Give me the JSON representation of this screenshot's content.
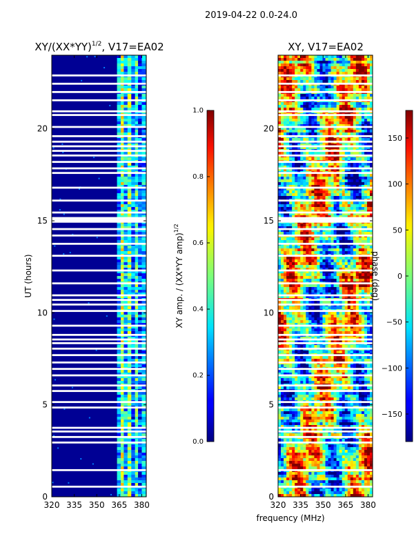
{
  "figure": {
    "suptitle": "2019-04-22 0.0-24.0",
    "shared_xlabel": "frequency (MHz)"
  },
  "chart_data": [
    {
      "type": "heatmap",
      "title": "XY/(XX*YY)",
      "title_sup": "1/2",
      "title_suffix": ", V17=EA02",
      "xlabel": "",
      "ylabel": "UT (hours)",
      "xlim": [
        320,
        383
      ],
      "ylim": [
        0,
        24
      ],
      "xticks": [
        320,
        335,
        350,
        365,
        380
      ],
      "yticks": [
        0,
        5,
        10,
        15,
        20
      ],
      "quantity": "normalized XY amplitude",
      "background_value": 0.02,
      "band": {
        "columns": [
          {
            "x0": 363.5,
            "x1": 366.0,
            "value": 0.28
          },
          {
            "x0": 366.0,
            "x1": 368.0,
            "value": 0.55
          },
          {
            "x0": 368.0,
            "x1": 370.5,
            "value": 0.32
          },
          {
            "x0": 370.5,
            "x1": 373.0,
            "value": 0.48
          },
          {
            "x0": 373.0,
            "x1": 375.5,
            "value": 0.22
          },
          {
            "x0": 375.5,
            "x1": 377.5,
            "value": 0.42
          },
          {
            "x0": 377.5,
            "x1": 380.0,
            "value": 0.18
          },
          {
            "x0": 380.0,
            "x1": 382.5,
            "value": 0.3
          }
        ]
      },
      "flagged_gaps_hours": [
        0.55,
        1.45,
        2.95,
        3.25,
        3.55,
        3.75,
        4.85,
        5.15,
        5.75,
        6.05,
        6.6,
        6.95,
        7.3,
        7.7,
        8.05,
        8.35,
        8.55,
        8.8,
        9.3,
        10.1,
        10.45,
        10.7,
        10.95,
        11.6,
        12.3,
        13.1,
        13.75,
        14.2,
        14.55,
        14.95,
        15.05,
        15.15,
        15.45,
        16.1,
        16.8,
        17.6,
        17.85,
        18.2,
        18.55,
        18.8,
        19.05,
        19.3,
        19.6,
        20.1,
        20.75,
        20.95,
        21.55,
        22.0,
        22.45,
        22.9
      ],
      "colorbar": {
        "label": "XY amp. / (XX*YY amp)",
        "label_sup": "1/2",
        "range": [
          0.0,
          1.0
        ],
        "ticks": [
          "0.0",
          "0.2",
          "0.4",
          "0.6",
          "0.8",
          "1.0"
        ]
      }
    },
    {
      "type": "heatmap",
      "title": "XY, V17=EA02",
      "xlabel": "frequency (MHz)",
      "ylabel": "",
      "xlim": [
        320,
        383
      ],
      "ylim": [
        0,
        24
      ],
      "xticks": [
        320,
        335,
        350,
        365,
        380
      ],
      "yticks": [
        0,
        5,
        10,
        15,
        20
      ],
      "quantity": "XY phase (deg)",
      "flagged_gaps_hours": [
        0.55,
        1.45,
        2.95,
        3.25,
        3.55,
        3.75,
        4.85,
        5.15,
        5.75,
        6.05,
        6.6,
        6.95,
        7.3,
        7.7,
        8.05,
        8.35,
        8.55,
        8.8,
        9.3,
        10.1,
        10.45,
        10.7,
        10.95,
        11.6,
        12.3,
        13.1,
        13.75,
        14.2,
        14.55,
        14.95,
        15.05,
        15.15,
        15.45,
        16.1,
        16.8,
        17.6,
        17.85,
        18.2,
        18.55,
        18.8,
        19.05,
        19.3,
        19.6,
        20.1,
        20.75,
        20.95,
        21.55,
        22.0,
        22.45,
        22.9
      ],
      "colorbar": {
        "label": "phase (deg)",
        "range": [
          -180,
          180
        ],
        "ticks": [
          "-150",
          "-100",
          "-50",
          "0",
          "50",
          "100",
          "150"
        ],
        "tick_values": [
          -150,
          -100,
          -50,
          0,
          50,
          100,
          150
        ]
      }
    }
  ]
}
